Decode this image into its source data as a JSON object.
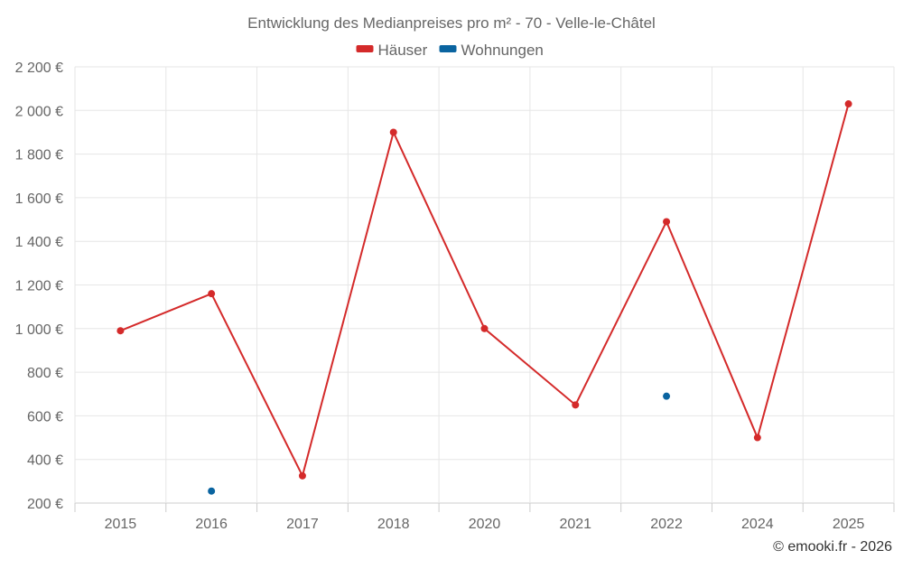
{
  "chart_data": {
    "type": "line",
    "title": "Entwicklung des Medianpreises pro m² - 70 - Velle-le-Châtel",
    "categories": [
      "2015",
      "2016",
      "2017",
      "2018",
      "2020",
      "2021",
      "2022",
      "2024",
      "2025"
    ],
    "series": [
      {
        "name": "Häuser",
        "color": "#d42a2a",
        "values": [
          990,
          1160,
          325,
          1900,
          1000,
          650,
          1490,
          500,
          2030
        ]
      },
      {
        "name": "Wohnungen",
        "color": "#0a64a0",
        "values": [
          null,
          255,
          null,
          null,
          null,
          null,
          690,
          null,
          null
        ]
      }
    ],
    "ylim": [
      200,
      2200
    ],
    "yticks": [
      200,
      400,
      600,
      800,
      1000,
      1200,
      1400,
      1600,
      1800,
      2000,
      2200
    ],
    "ytick_labels": [
      "200 €",
      "400 €",
      "600 €",
      "800 €",
      "1 000 €",
      "1 200 €",
      "1 400 €",
      "1 600 €",
      "1 800 €",
      "2 000 €",
      "2 200 €"
    ],
    "legend_position": "top-center",
    "grid": true,
    "credit": "© emooki.fr - 2026"
  }
}
